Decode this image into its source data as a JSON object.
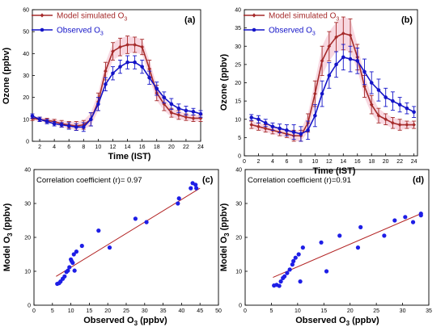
{
  "colors": {
    "model": "#a52a2a",
    "observed": "#1414c8",
    "band": "#f2b8c8",
    "fit": "#b22222",
    "scatter": "#1e1ee6"
  },
  "chart_data": [
    {
      "panel": "(a)",
      "type": "line",
      "xlabel": "Time (IST)",
      "ylabel": "Ozone (ppbv)",
      "xlim": [
        1,
        24
      ],
      "ylim": [
        0,
        60
      ],
      "xticks": [
        2,
        4,
        6,
        8,
        10,
        12,
        14,
        16,
        18,
        20,
        22,
        24
      ],
      "yticks": [
        0,
        10,
        20,
        30,
        40,
        50,
        60
      ],
      "legend_position": "top-left",
      "x": [
        1,
        2,
        3,
        4,
        5,
        6,
        7,
        8,
        9,
        10,
        11,
        12,
        13,
        14,
        15,
        16,
        17,
        18,
        19,
        20,
        21,
        22,
        23,
        24
      ],
      "series": [
        {
          "name": "Model simulated O3",
          "name_main": "Model simulated O",
          "name_sub": "3",
          "values": [
            10.5,
            10,
            9.5,
            9,
            8,
            7.5,
            7,
            7.5,
            10,
            18,
            32,
            41,
            43,
            44,
            44,
            43,
            33,
            22,
            17,
            13,
            12,
            11,
            10.5,
            10.5
          ],
          "errors": [
            1,
            1,
            1,
            1,
            1.5,
            1.5,
            2,
            2,
            3,
            4,
            4,
            4,
            4,
            4,
            3.5,
            3.5,
            4,
            3.5,
            3,
            2,
            2,
            1.5,
            1.5,
            1.5
          ]
        },
        {
          "name": "Observed O3",
          "name_main": "Observed O",
          "name_sub": "3",
          "values": [
            11.5,
            10,
            9,
            8,
            7.5,
            7,
            6.5,
            6.5,
            10,
            17,
            26,
            31,
            34,
            36,
            36,
            34,
            29,
            24,
            20,
            17,
            15,
            14,
            13.5,
            12.5
          ],
          "errors": [
            1,
            1,
            1,
            1,
            1,
            1.5,
            1.5,
            2,
            3,
            3,
            3,
            3,
            3,
            3,
            3,
            3,
            3,
            3,
            2.5,
            2.5,
            2,
            2,
            1.5,
            1.5
          ]
        }
      ]
    },
    {
      "panel": "(b)",
      "type": "line",
      "xlabel": "Time (IST)",
      "ylabel": "Ozone (ppbv)",
      "xlim": [
        0,
        24.5
      ],
      "ylim": [
        0,
        40
      ],
      "xticks": [
        0,
        2,
        4,
        6,
        8,
        10,
        12,
        14,
        16,
        18,
        20,
        22,
        24
      ],
      "yticks": [
        0,
        5,
        10,
        15,
        20,
        25,
        30,
        35,
        40
      ],
      "legend_position": "top-left",
      "x": [
        1,
        2,
        3,
        4,
        5,
        6,
        7,
        8,
        9,
        10,
        11,
        12,
        13,
        14,
        15,
        16,
        17,
        18,
        19,
        20,
        21,
        22,
        23,
        24
      ],
      "series": [
        {
          "name": "Model simulated O3",
          "name_main": "Model simulated O",
          "name_sub": "3",
          "values": [
            8.5,
            8,
            7.5,
            7,
            6.5,
            6,
            5.5,
            5.5,
            9,
            17,
            26,
            30,
            32.5,
            33.5,
            33,
            27,
            19,
            14,
            11,
            10,
            9,
            8.5,
            8.5,
            8.5
          ],
          "errors": [
            1,
            1,
            1,
            1,
            1,
            1,
            1.5,
            1.5,
            2.5,
            3.5,
            4,
            4,
            4,
            4.5,
            4.5,
            3.5,
            3,
            2.5,
            2,
            1.5,
            1.5,
            1.5,
            1,
            1
          ]
        },
        {
          "name": "Observed O3",
          "name_main": "Observed O",
          "name_sub": "3",
          "values": [
            10.5,
            10,
            9,
            8,
            7.5,
            7,
            6.5,
            6,
            7,
            11,
            17,
            22,
            25,
            27,
            26.5,
            26,
            23,
            20,
            18,
            16,
            15,
            14,
            13,
            12
          ],
          "errors": [
            0.8,
            1,
            1,
            1,
            1.2,
            1.5,
            2,
            2,
            2.5,
            3,
            3.5,
            3.5,
            3.5,
            3.5,
            3.5,
            3.5,
            3.5,
            3,
            3,
            2.5,
            2.5,
            2,
            1.5,
            1.5
          ]
        }
      ]
    },
    {
      "panel": "(c)",
      "type": "scatter",
      "xlabel": "Observed O3 (ppbv)",
      "xlabel_main": "Observed O",
      "xlabel_sub": "3",
      "xlabel_unit": " (ppbv)",
      "ylabel": "Model O3 (ppbv)",
      "ylabel_main": "Model O",
      "ylabel_sub": "3",
      "ylabel_unit": " (ppbv)",
      "xlim": [
        0,
        50
      ],
      "ylim": [
        0,
        40
      ],
      "xticks": [
        0,
        5,
        10,
        15,
        20,
        25,
        30,
        35,
        40,
        45,
        50
      ],
      "yticks": [
        0,
        10,
        20,
        30,
        40
      ],
      "annotation": "Correlation coefficient (r)= 0.97",
      "fit_line": [
        [
          6,
          8.5
        ],
        [
          45,
          34.5
        ]
      ],
      "points": [
        [
          6.3,
          6.3
        ],
        [
          6.8,
          6.5
        ],
        [
          7.2,
          7
        ],
        [
          7.8,
          7.8
        ],
        [
          8.3,
          8.5
        ],
        [
          8.8,
          9.8
        ],
        [
          9.2,
          10.2
        ],
        [
          9.6,
          11.2
        ],
        [
          10,
          13.5
        ],
        [
          10.2,
          13
        ],
        [
          10.5,
          12.5
        ],
        [
          10.8,
          15
        ],
        [
          11,
          10.2
        ],
        [
          11.5,
          15.8
        ],
        [
          13,
          17.5
        ],
        [
          17.5,
          22
        ],
        [
          20.5,
          17
        ],
        [
          27.5,
          25.5
        ],
        [
          30.5,
          24.5
        ],
        [
          39,
          30
        ],
        [
          39.3,
          31.5
        ],
        [
          42.5,
          34.5
        ],
        [
          43,
          36
        ],
        [
          43.8,
          35.5
        ],
        [
          44,
          34.5
        ]
      ]
    },
    {
      "panel": "(d)",
      "type": "scatter",
      "xlabel": "Observed O3 (ppbv)",
      "xlabel_main": "Observed O",
      "xlabel_sub": "3",
      "xlabel_unit": " (ppbv)",
      "ylabel": "Model O3 (ppbv)",
      "ylabel_main": "Model O",
      "ylabel_sub": "3",
      "ylabel_unit": " (ppbv)",
      "xlim": [
        0,
        35
      ],
      "ylim": [
        0,
        40
      ],
      "xticks": [
        0,
        5,
        10,
        15,
        20,
        25,
        30,
        35
      ],
      "yticks": [
        0,
        10,
        20,
        30,
        40
      ],
      "annotation": "Correlation coefficient (r)=0.91",
      "fit_line": [
        [
          5.3,
          8.2
        ],
        [
          33.5,
          27
        ]
      ],
      "points": [
        [
          5.5,
          5.8
        ],
        [
          6,
          6
        ],
        [
          6.5,
          5.7
        ],
        [
          6.8,
          7
        ],
        [
          7.2,
          8
        ],
        [
          7.5,
          8.5
        ],
        [
          8,
          9.5
        ],
        [
          8.5,
          10.5
        ],
        [
          9,
          12
        ],
        [
          9.2,
          13
        ],
        [
          9.6,
          14
        ],
        [
          10.2,
          15
        ],
        [
          10.5,
          7
        ],
        [
          11,
          17
        ],
        [
          14.5,
          18.5
        ],
        [
          15.5,
          10
        ],
        [
          18,
          20.5
        ],
        [
          21.5,
          17
        ],
        [
          22,
          23
        ],
        [
          26.5,
          20.5
        ],
        [
          28.5,
          25
        ],
        [
          30.5,
          26
        ],
        [
          32,
          24.5
        ],
        [
          33.5,
          26.5
        ],
        [
          33.5,
          27
        ]
      ]
    }
  ]
}
